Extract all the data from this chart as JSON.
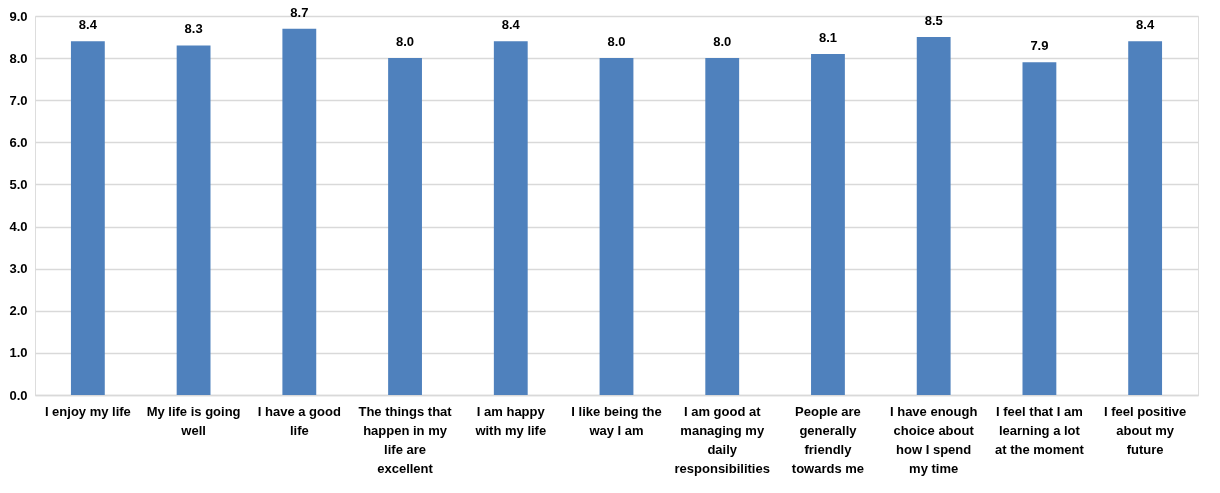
{
  "chart_data": {
    "type": "bar",
    "categories": [
      "I enjoy my life",
      "My life is going well",
      "I have a good life",
      "The things that happen in my life are excellent",
      "I am happy with my life",
      "I like being the way I am",
      "I am good at managing my daily responsibilities",
      "People are generally friendly towards me",
      "I have enough choice about how I spend my time",
      "I feel that I am learning a lot at the moment",
      "I feel positive about my future"
    ],
    "values": [
      8.4,
      8.3,
      8.7,
      8.0,
      8.4,
      8.0,
      8.0,
      8.1,
      8.5,
      7.9,
      8.4
    ],
    "value_labels": [
      "8.4",
      "8.3",
      "8.7",
      "8.0",
      "8.4",
      "8.0",
      "8.0",
      "8.1",
      "8.5",
      "7.9",
      "8.4"
    ],
    "color": "#4f81bd",
    "ylim": [
      0,
      9
    ],
    "yticks": [
      {
        "value": 0,
        "label": "0.0"
      },
      {
        "value": 1,
        "label": "1.0"
      },
      {
        "value": 2,
        "label": "2.0"
      },
      {
        "value": 3,
        "label": "3.0"
      },
      {
        "value": 4,
        "label": "4.0"
      },
      {
        "value": 5,
        "label": "5.0"
      },
      {
        "value": 6,
        "label": "6.0"
      },
      {
        "value": 7,
        "label": "7.0"
      },
      {
        "value": 8,
        "label": "8.0"
      },
      {
        "value": 9,
        "label": "9.0"
      }
    ],
    "grid": "y"
  }
}
